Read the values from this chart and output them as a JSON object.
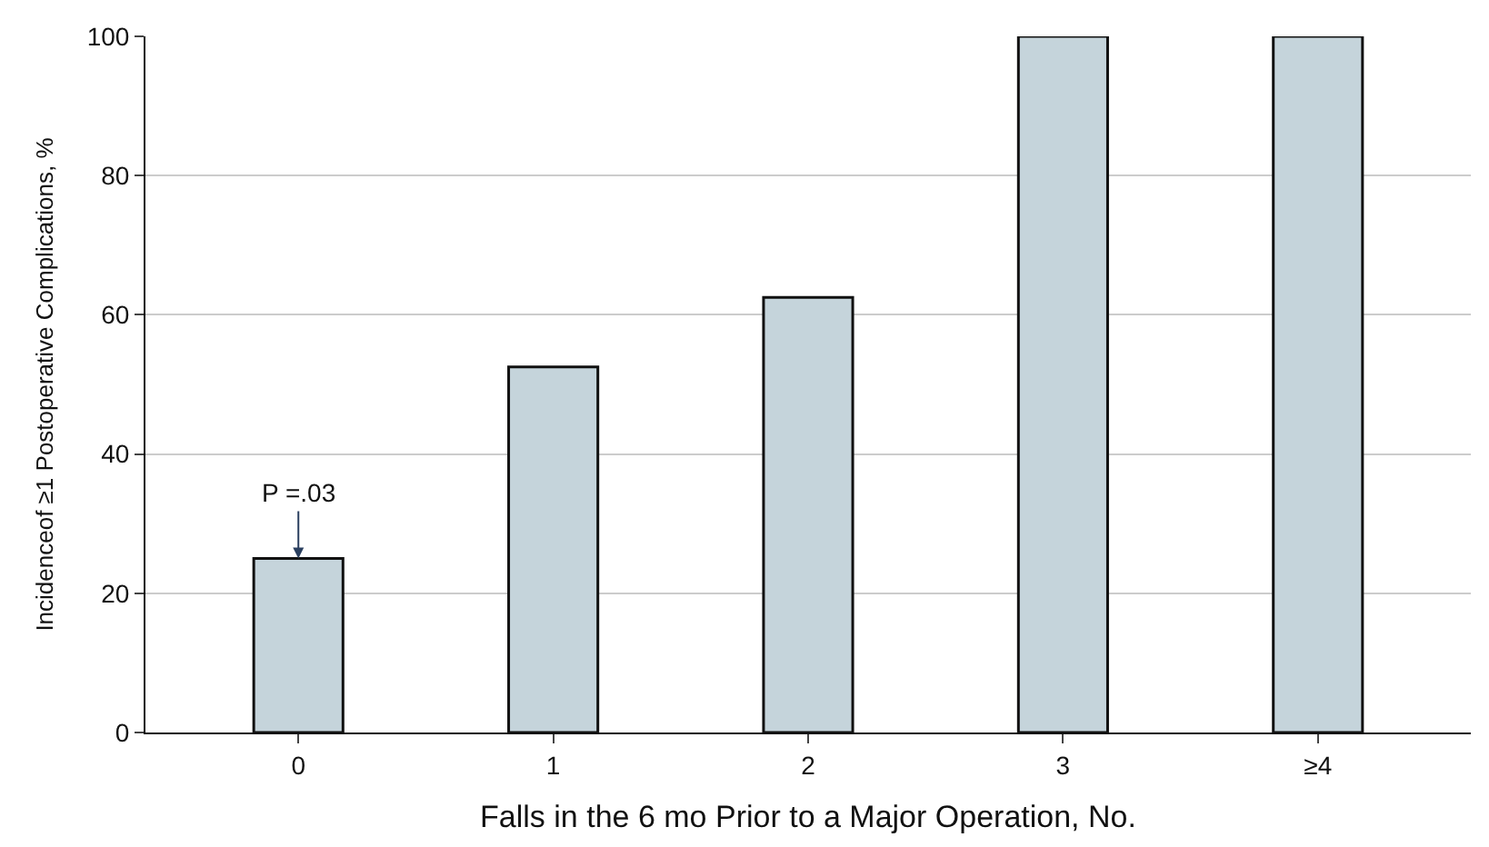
{
  "chart_data": {
    "type": "bar",
    "xlabel": "Falls in the 6 mo Prior to a Major Operation, No.",
    "ylabel": "Incidenceof ≥1 Postoperative Complications, %",
    "categories": [
      "0",
      "1",
      "2",
      "3",
      "≥4"
    ],
    "series": [
      {
        "color": "#c5d4db",
        "values": [
          25,
          52.5,
          62.5,
          100,
          100
        ]
      }
    ],
    "ylim": [
      0,
      100
    ],
    "yticks": [
      0,
      20,
      40,
      60,
      80,
      100
    ],
    "grid": "y",
    "annotations": [
      {
        "text": "P =.03",
        "x": "0",
        "y": 25
      }
    ]
  }
}
